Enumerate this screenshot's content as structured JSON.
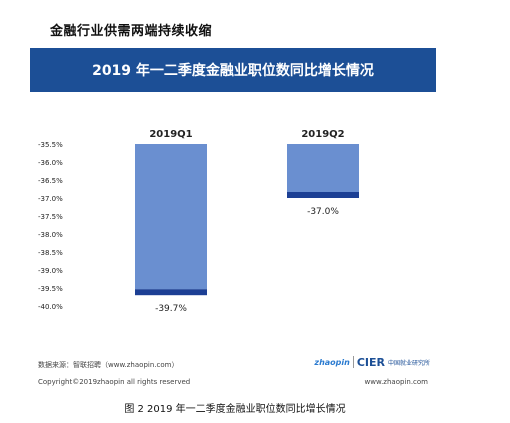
{
  "heading": "金融行业供需两端持续收缩",
  "caption": "图 2 2019 年一二季度金融业职位数同比增长情况",
  "figure": {
    "title": "2019 年一二季度金融业职位数同比增长情况",
    "source": "数据来源：智联招聘（www.zhaopin.com）",
    "copyright": "Copyright©2019zhaopin all rights reserved",
    "url": "www.zhaopin.com",
    "logo_zhaopin": "zhaopin",
    "logo_cier": "CIER",
    "logo_cier_cn": "中国就业研究所"
  },
  "colors": {
    "title_bg": "#1c4f96",
    "bar_fill": "#6a8fd0",
    "bar_end": "#1c3f94"
  },
  "chart_data": {
    "type": "bar",
    "categories": [
      "2019Q1",
      "2019Q2"
    ],
    "values": [
      -39.7,
      -37.0
    ],
    "data_labels": [
      "-39.7%",
      "-37.0%"
    ],
    "ylim": [
      -40.0,
      -35.5
    ],
    "yticks": [
      "-35.5%",
      "-36.0%",
      "-36.5%",
      "-37.0%",
      "-37.5%",
      "-38.0%",
      "-38.5%",
      "-39.0%",
      "-39.5%",
      "-40.0%"
    ],
    "y_inverted": true,
    "category_axis": "top",
    "grid": false,
    "legend": "none"
  }
}
